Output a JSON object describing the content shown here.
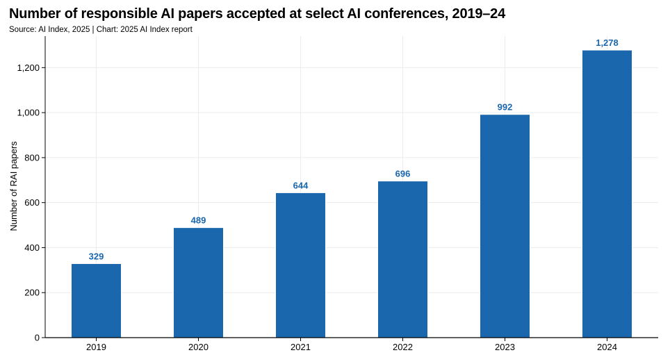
{
  "chart_data": {
    "type": "bar",
    "title": "Number of responsible AI papers accepted at select AI conferences, 2019–24",
    "subtitle": "Source: AI Index, 2025 | Chart: 2025 AI Index report",
    "xlabel": "",
    "ylabel": "Number of RAI papers",
    "categories": [
      "2019",
      "2020",
      "2021",
      "2022",
      "2023",
      "2024"
    ],
    "values": [
      329,
      489,
      644,
      696,
      992,
      1278
    ],
    "data_labels": [
      "329",
      "489",
      "644",
      "696",
      "992",
      "1,278"
    ],
    "ylim": [
      0,
      1340
    ],
    "yticks": [
      0,
      200,
      400,
      600,
      800,
      1000,
      1200
    ],
    "ytick_labels": [
      "0",
      "200",
      "400",
      "600",
      "800",
      "1,000",
      "1,200"
    ],
    "grid": true,
    "colors": {
      "bar": "#1a67ad",
      "label": "#1a67ad",
      "grid": "#ececec",
      "axis": "#000000"
    }
  }
}
